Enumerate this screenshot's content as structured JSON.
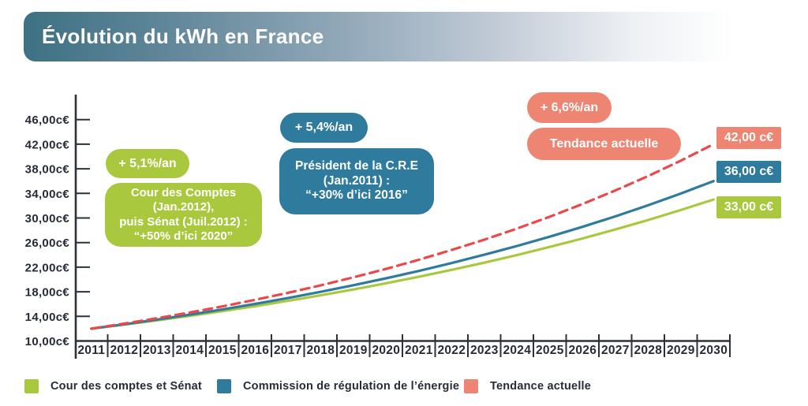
{
  "title": "Évolution du kWh en France",
  "colors": {
    "green": "#a9c83d",
    "blue": "#2e7b9d",
    "salmon": "#ee8472",
    "red_dashed_line": "#e9494d",
    "axis_text": "#262b35",
    "banner_teal": "#3d7183"
  },
  "annotations": {
    "green_rate": "+ 5,1%/an",
    "green_note": "Cour des Comptes\n(Jan.2012),\npuis Sénat (Juil.2012) :\n“+50% d’ici 2020”",
    "blue_rate": "+ 5,4%/an",
    "blue_note": "Président de la C.R.E\n(Jan.2011) :\n“+30% d’ici 2016”",
    "salmon_rate": "+ 6,6%/an",
    "salmon_label": "Tendance actuelle",
    "end_tendance": "42,00 c€",
    "end_cre": "36,00 c€",
    "end_cour": "33,00 c€"
  },
  "legend": [
    {
      "label": "Cour des comptes et Sénat",
      "color": "#a9c83d"
    },
    {
      "label": "Commission de régulation de l’énergie",
      "color": "#2e7b9d"
    },
    {
      "label": "Tendance actuelle",
      "color": "#ee8472"
    }
  ],
  "chart_data": {
    "type": "line",
    "title": "Évolution du kWh en France",
    "x": [
      "2011",
      "2012",
      "2013",
      "2014",
      "2015",
      "2016",
      "2017",
      "2018",
      "2019",
      "2020",
      "2021",
      "2022",
      "2023",
      "2024",
      "2025",
      "2026",
      "2027",
      "2028",
      "2029",
      "2030"
    ],
    "ylim": [
      10,
      48
    ],
    "ytick_values": [
      46,
      42,
      38,
      34,
      30,
      26,
      22,
      18,
      14,
      10
    ],
    "ytick_labels": [
      "46,00c€",
      "42,00c€",
      "38,00c€",
      "34,00c€",
      "30,00c€",
      "26,00c€",
      "22,00c€",
      "18,00c€",
      "14,00c€",
      "10,00c€"
    ],
    "grid": false,
    "legend_position": "bottom",
    "series": [
      {
        "id": "cour-des-comptes",
        "name": "Cour des comptes et Sénat",
        "rate": "+ 5,1%/an",
        "end_label": "33,00 c€",
        "color": "#a9c83d",
        "style": "solid",
        "values": [
          12.0,
          12.66,
          13.35,
          14.08,
          14.85,
          15.66,
          16.52,
          17.42,
          18.37,
          19.38,
          20.44,
          21.56,
          22.73,
          23.98,
          25.29,
          26.67,
          28.13,
          29.67,
          31.29,
          33.0
        ]
      },
      {
        "id": "cre",
        "name": "Commission de régulation de l’énergie",
        "rate": "+ 5,4%/an",
        "end_label": "36,00 c€",
        "color": "#2e7b9d",
        "style": "solid",
        "values": [
          12.0,
          12.71,
          13.47,
          14.27,
          15.12,
          16.02,
          16.98,
          17.99,
          19.06,
          20.19,
          21.39,
          22.67,
          24.02,
          25.45,
          26.96,
          28.56,
          30.26,
          32.07,
          33.97,
          36.0
        ]
      },
      {
        "id": "tendance",
        "name": "Tendance actuelle",
        "rate": "+ 6,6%/an",
        "end_label": "42,00 c€",
        "color": "#e9494d",
        "style": "dashed",
        "values": [
          12.0,
          12.82,
          13.69,
          14.62,
          15.62,
          16.69,
          17.82,
          19.04,
          20.34,
          21.72,
          23.2,
          24.79,
          26.47,
          28.28,
          30.21,
          32.27,
          34.47,
          36.81,
          39.32,
          42.0
        ]
      }
    ]
  }
}
